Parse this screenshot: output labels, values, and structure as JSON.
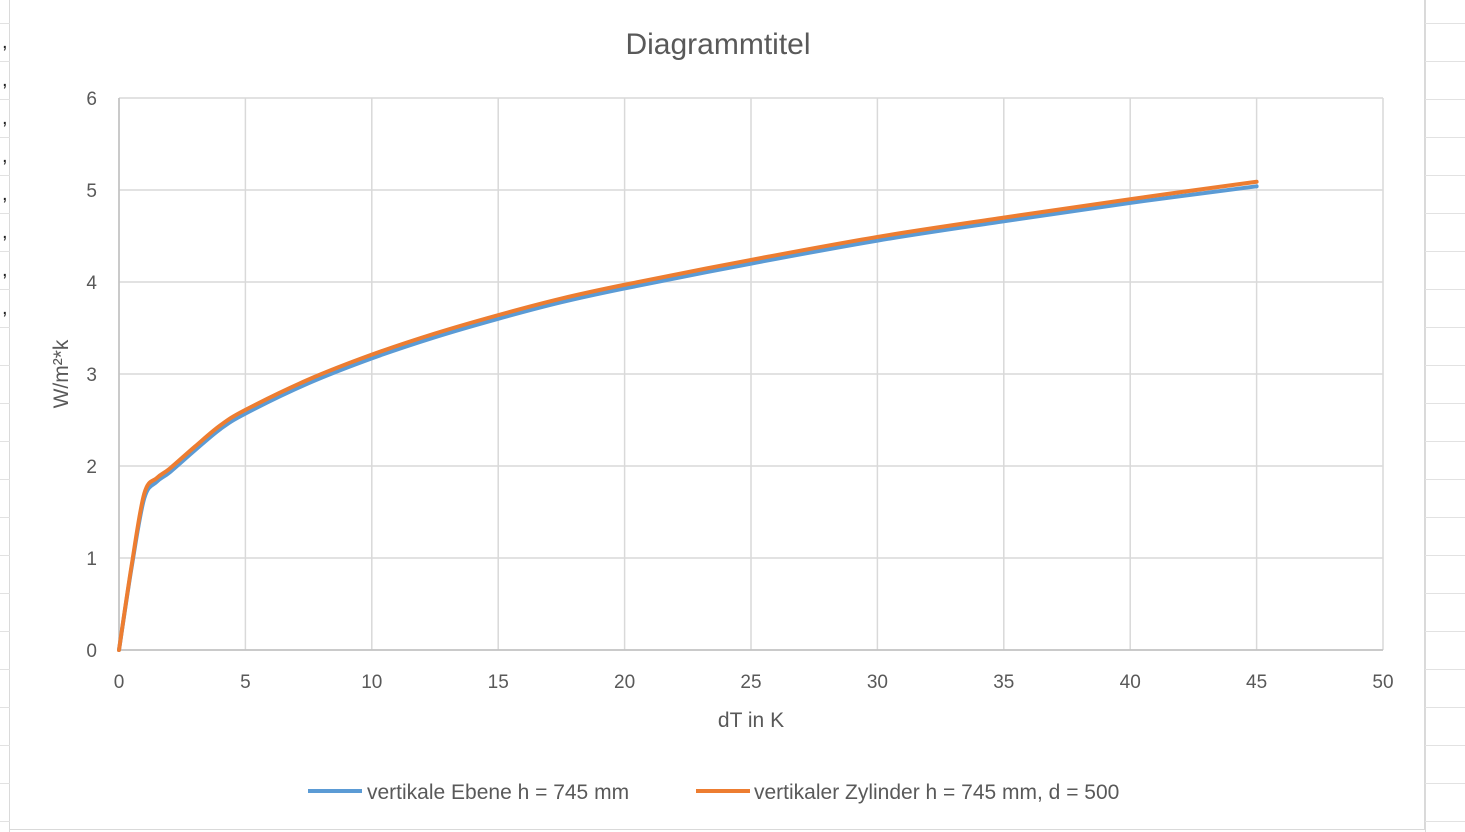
{
  "sheet": {
    "row_markers": [
      ",",
      ",",
      ",",
      ",",
      ",",
      ",",
      ",",
      ","
    ]
  },
  "chart_data": {
    "type": "line",
    "title": "Diagrammtitel",
    "xlabel": "dT in K",
    "ylabel": "W/m²*k",
    "xlim": [
      0,
      50
    ],
    "ylim": [
      0,
      6
    ],
    "x_ticks": [
      0,
      5,
      10,
      15,
      20,
      25,
      30,
      35,
      40,
      45,
      50
    ],
    "y_ticks": [
      0,
      1,
      2,
      3,
      4,
      5,
      6
    ],
    "grid": true,
    "legend_position": "bottom",
    "series": [
      {
        "name": "vertikale Ebene h = 745 mm",
        "color": "#5b9bd5",
        "x": [
          0,
          0.5,
          1,
          1.5,
          2,
          3,
          4,
          5,
          7.5,
          10,
          12.5,
          15,
          17.5,
          20,
          25,
          30,
          35,
          40,
          45
        ],
        "y": [
          0,
          0.9,
          1.65,
          1.83,
          1.93,
          2.17,
          2.4,
          2.57,
          2.9,
          3.17,
          3.4,
          3.6,
          3.78,
          3.93,
          4.2,
          4.45,
          4.66,
          4.86,
          5.04
        ]
      },
      {
        "name": "vertikaler Zylinder h = 745 mm, d = 500",
        "color": "#ed7d31",
        "x": [
          0,
          0.5,
          1,
          1.5,
          2,
          3,
          4,
          5,
          7.5,
          10,
          12.5,
          15,
          17.5,
          20,
          25,
          30,
          35,
          40,
          45
        ],
        "y": [
          0,
          0.92,
          1.7,
          1.87,
          1.97,
          2.21,
          2.44,
          2.61,
          2.94,
          3.21,
          3.44,
          3.64,
          3.82,
          3.97,
          4.24,
          4.49,
          4.7,
          4.9,
          5.09
        ]
      }
    ]
  }
}
